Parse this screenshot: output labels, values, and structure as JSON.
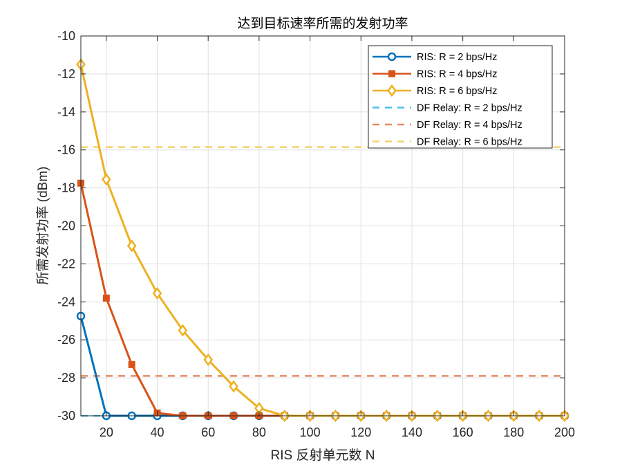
{
  "chart_data": {
    "type": "line",
    "title": "达到目标速率所需的发射功率",
    "xlabel": "RIS 反射单元数 N",
    "ylabel": "所需发射功率 (dBm)",
    "xlim": [
      10,
      200
    ],
    "ylim": [
      -30,
      -10
    ],
    "grid": true,
    "legend_position": "top-right",
    "x": [
      10,
      20,
      30,
      40,
      50,
      60,
      70,
      80,
      90,
      100,
      110,
      120,
      130,
      140,
      150,
      160,
      170,
      180,
      190,
      200
    ],
    "x_ticks": [
      "20",
      "40",
      "60",
      "80",
      "100",
      "120",
      "140",
      "160",
      "180",
      "200"
    ],
    "y_ticks": [
      "-30",
      "-28",
      "-26",
      "-24",
      "-22",
      "-20",
      "-18",
      "-16",
      "-14",
      "-12",
      "-10"
    ],
    "series": [
      {
        "name": "RIS: R = 2 bps/Hz",
        "color": "#0072BD",
        "style": "solid",
        "marker": "circle",
        "values": [
          -24.75,
          -30,
          -30,
          -30,
          -30,
          -30,
          -30,
          -30,
          -30,
          -30,
          -30,
          -30,
          -30,
          -30,
          -30,
          -30,
          -30,
          -30,
          -30,
          -30
        ]
      },
      {
        "name": "RIS: R = 4 bps/Hz",
        "color": "#D95319",
        "style": "solid",
        "marker": "square",
        "values": [
          -17.75,
          -23.8,
          -27.3,
          -29.85,
          -30,
          -30,
          -30,
          -30,
          -30,
          -30,
          -30,
          -30,
          -30,
          -30,
          -30,
          -30,
          -30,
          -30,
          -30,
          -30
        ]
      },
      {
        "name": "RIS: R = 6 bps/Hz",
        "color": "#EDB120",
        "style": "solid",
        "marker": "diamond",
        "values": [
          -11.5,
          -17.55,
          -21.05,
          -23.55,
          -25.5,
          -27.05,
          -28.45,
          -29.6,
          -30,
          -30,
          -30,
          -30,
          -30,
          -30,
          -30,
          -30,
          -30,
          -30,
          -30,
          -30
        ]
      },
      {
        "name": "DF Relay: R = 2 bps/Hz",
        "color": "#4DBEEE",
        "style": "dashed",
        "marker": "none",
        "constant": -30
      },
      {
        "name": "DF Relay: R = 4 bps/Hz",
        "color": "#E88A62",
        "style": "dashed",
        "marker": "none",
        "constant": -27.9
      },
      {
        "name": "DF Relay: R = 6 bps/Hz",
        "color": "#F2D26E",
        "style": "dashed",
        "marker": "none",
        "constant": -15.85
      }
    ]
  }
}
